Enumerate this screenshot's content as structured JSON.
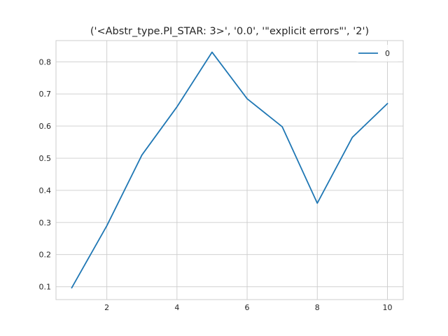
{
  "chart_data": {
    "type": "line",
    "title": "('<Abstr_type.PI_STAR: 3>', '0.0', '\"explicit errors\"', '2')",
    "xlabel": "",
    "ylabel": "",
    "x": [
      1,
      2,
      3,
      4,
      5,
      6,
      7,
      8,
      9,
      10
    ],
    "series": [
      {
        "name": "0",
        "color": "#1f77b4",
        "values": [
          0.097,
          0.29,
          0.51,
          0.66,
          0.83,
          0.685,
          0.598,
          0.36,
          0.565,
          0.67
        ]
      }
    ],
    "xlim": [
      0.55,
      10.45
    ],
    "ylim": [
      0.06,
      0.866
    ],
    "xticks": [
      2,
      4,
      6,
      8,
      10
    ],
    "xtick_labels": [
      "2",
      "4",
      "6",
      "8",
      "10"
    ],
    "yticks": [
      0.1,
      0.2,
      0.3,
      0.4,
      0.5,
      0.6,
      0.7,
      0.8
    ],
    "ytick_labels": [
      "0.1",
      "0.2",
      "0.3",
      "0.4",
      "0.5",
      "0.6",
      "0.7",
      "0.8"
    ],
    "grid": true,
    "legend": "top-right",
    "style": "seaborn-whitegrid"
  }
}
